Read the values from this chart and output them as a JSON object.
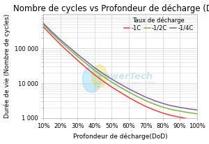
{
  "title": "Nombre de cycles vs Profondeur de décharge (DoD)",
  "xlabel": "Profondeur de décharge(DoD)",
  "ylabel": "Durée de vie (Nombre de cycles)",
  "legend_title": "Taux de décharge",
  "legend_labels": [
    "-1C",
    "-1/2C",
    "-1/4C"
  ],
  "line_colors": [
    "#e8423f",
    "#7ab648",
    "#8060a8"
  ],
  "x_ticks": [
    0.1,
    0.2,
    0.3,
    0.4,
    0.5,
    0.6,
    0.7,
    0.8,
    0.9,
    1.0
  ],
  "x_tick_labels": [
    "10%",
    "20%",
    "30%",
    "40%",
    "50%",
    "60%",
    "70%",
    "80%",
    "90%",
    "100%"
  ],
  "y_ticks": [
    1000,
    10000,
    100000
  ],
  "y_tick_labels": [
    "1 000",
    "10 000",
    "100 000"
  ],
  "dod_values": [
    0.1,
    0.15,
    0.2,
    0.25,
    0.3,
    0.35,
    0.4,
    0.45,
    0.5,
    0.55,
    0.6,
    0.65,
    0.7,
    0.75,
    0.8,
    0.85,
    0.9,
    0.95,
    1.0
  ],
  "cycles_1C": [
    420000,
    230000,
    130000,
    77000,
    46000,
    28000,
    17500,
    11500,
    7800,
    5500,
    3900,
    2850,
    2150,
    1700,
    1380,
    1180,
    1050,
    950,
    870
  ],
  "cycles_half_C": [
    490000,
    270000,
    158000,
    96000,
    59000,
    37000,
    23500,
    15700,
    10800,
    7700,
    5600,
    4150,
    3150,
    2500,
    2050,
    1750,
    1580,
    1430,
    1320
  ],
  "cycles_quarter_C": [
    530000,
    300000,
    178000,
    110000,
    68000,
    43500,
    28000,
    19000,
    13200,
    9500,
    6950,
    5200,
    3980,
    3180,
    2620,
    2250,
    2020,
    1840,
    1700
  ],
  "bg_color": "#ffffff",
  "plot_bg_color": "#ffffff",
  "grid_color": "#d8d8d8",
  "title_fontsize": 8.5,
  "axis_fontsize": 6.5,
  "tick_fontsize": 6,
  "legend_fontsize": 6,
  "linewidth": 1.1
}
